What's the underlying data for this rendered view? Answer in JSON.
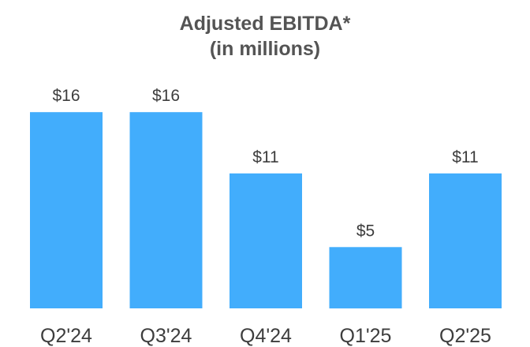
{
  "chart_data": {
    "type": "bar",
    "title": "Adjusted EBITDA*",
    "subtitle": "(in millions)",
    "categories": [
      "Q2'24",
      "Q3'24",
      "Q4'24",
      "Q1'25",
      "Q2'25"
    ],
    "values": [
      16,
      16,
      11,
      5,
      11
    ],
    "data_labels": [
      "$16",
      "$16",
      "$11",
      "$5",
      "$11"
    ],
    "xlabel": "",
    "ylabel": "",
    "ylim": [
      0,
      18
    ],
    "grid": false,
    "legend": "none",
    "bar_color": "#42adfc"
  }
}
